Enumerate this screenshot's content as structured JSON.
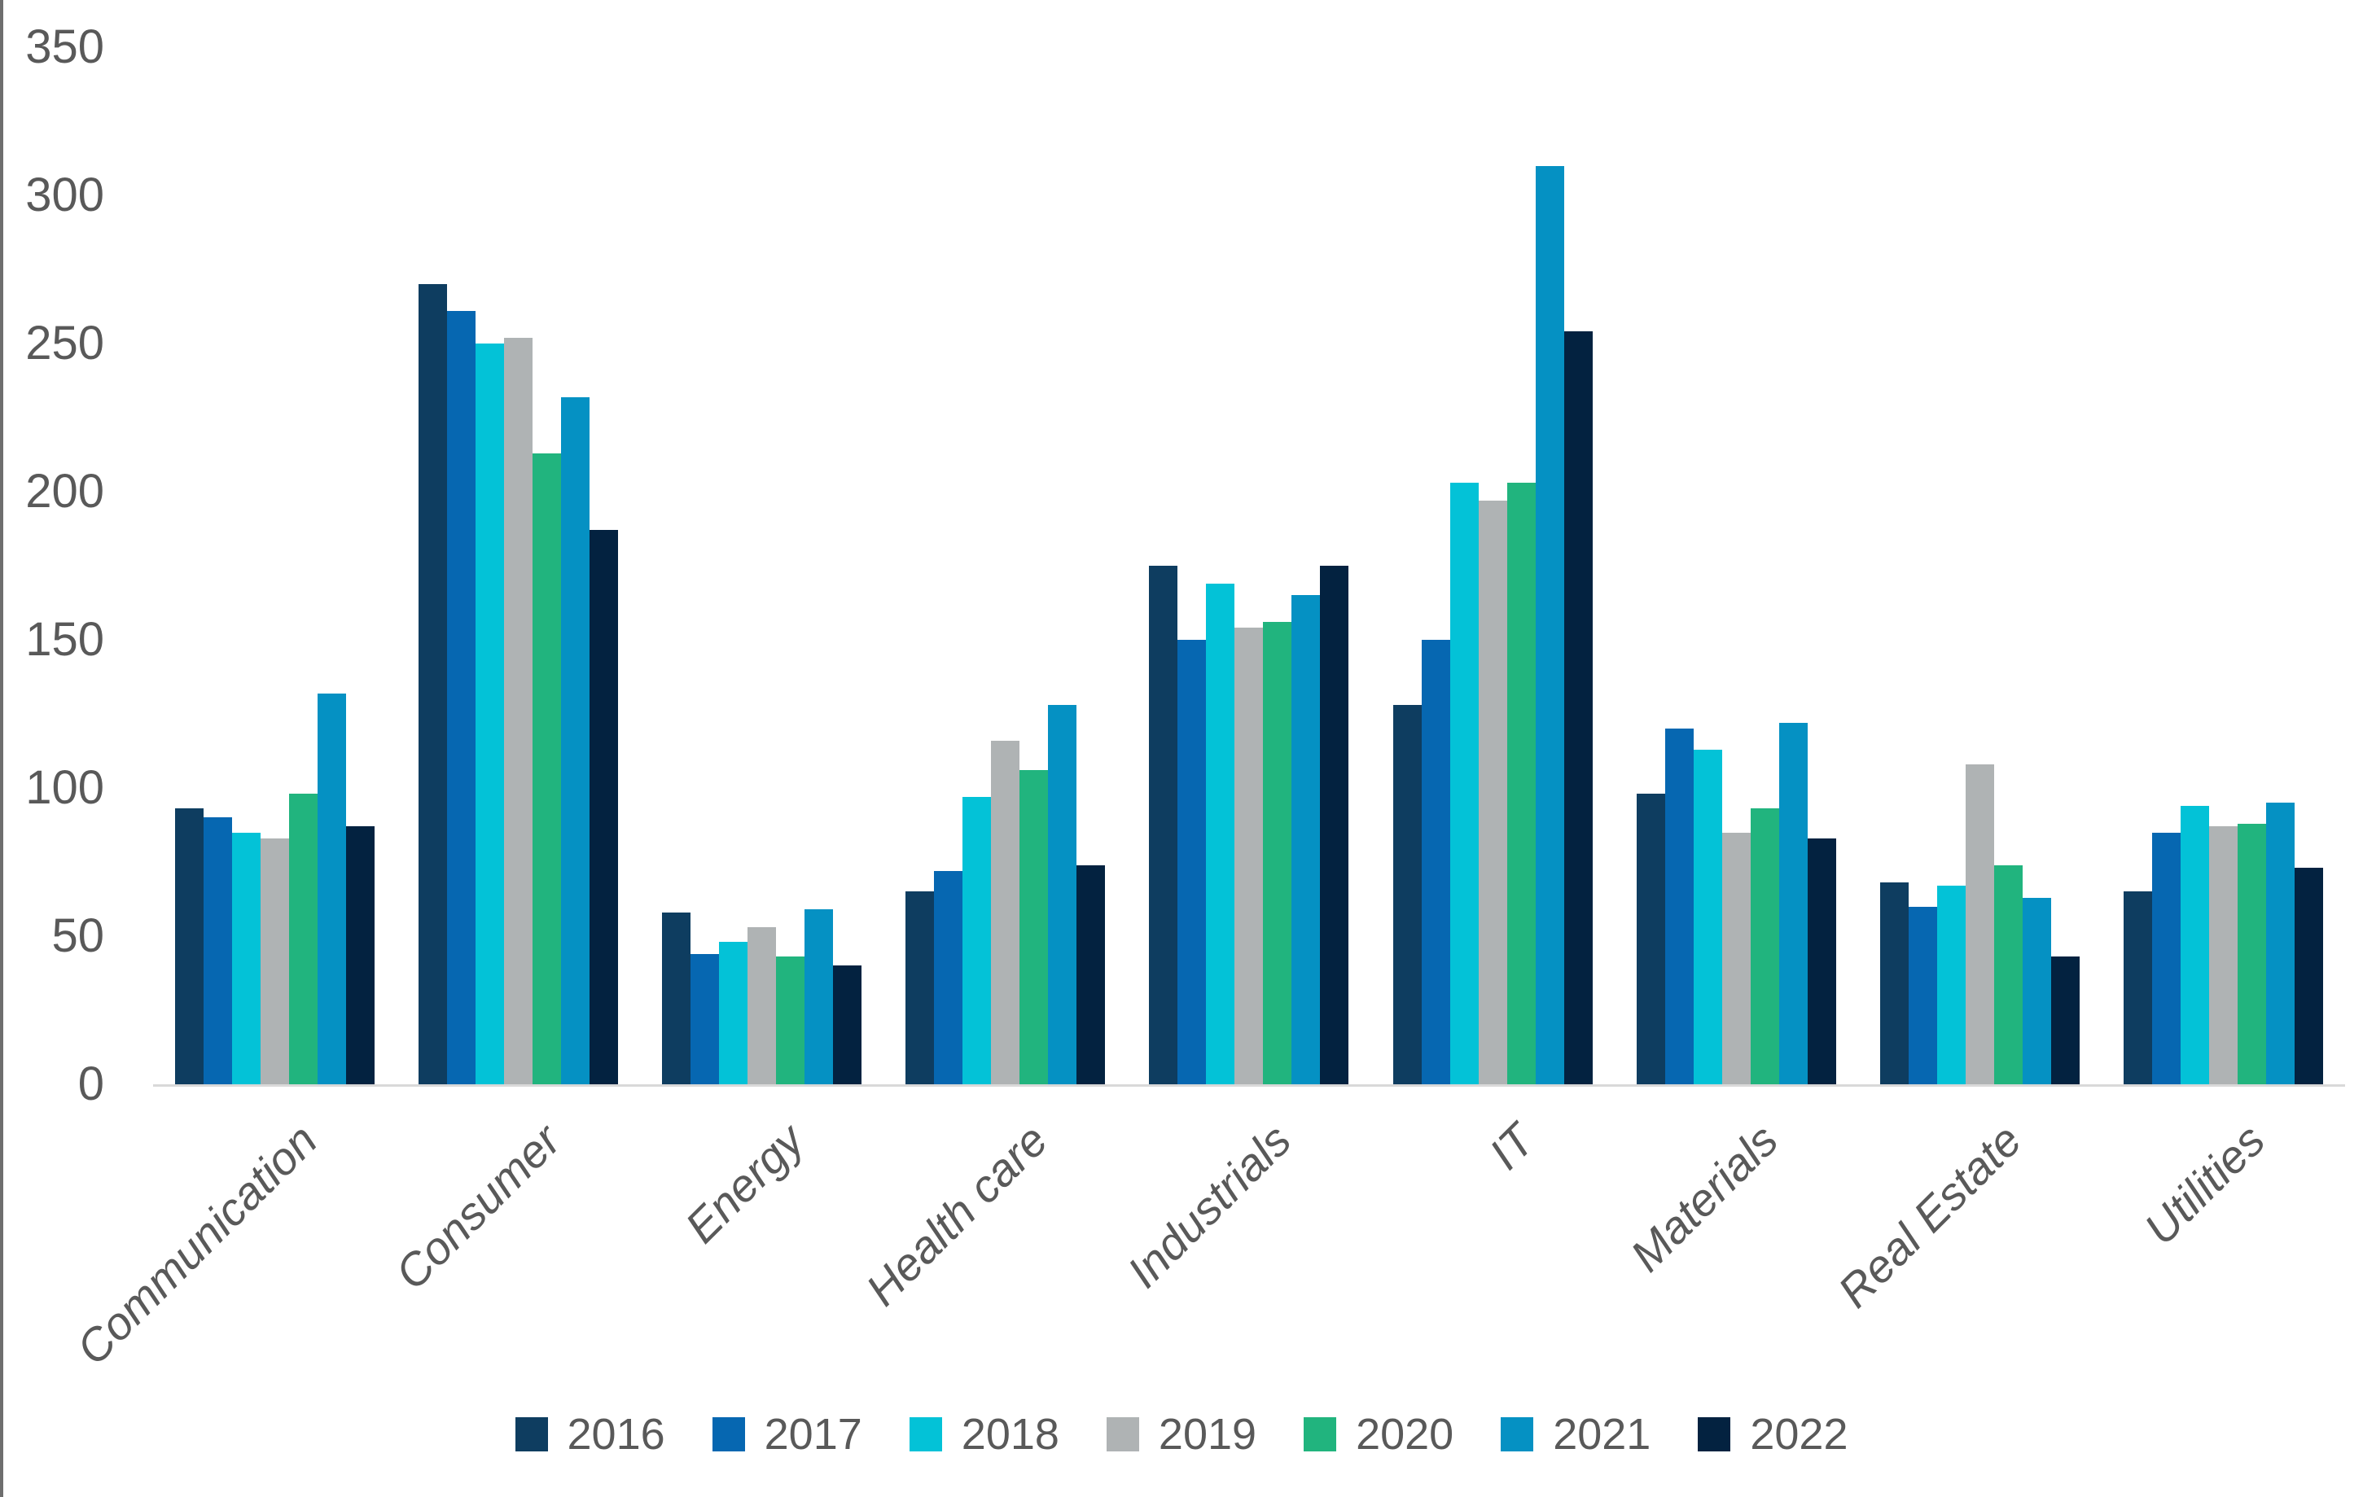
{
  "window": {
    "background": "#FFFFFF",
    "left_edge_color": "#6E6E6E"
  },
  "chart_data": {
    "type": "bar",
    "title": "",
    "xlabel": "",
    "ylabel": "",
    "categories": [
      "Communication",
      "Consumer",
      "Energy",
      "Health care",
      "Industrials",
      "IT",
      "Materials",
      "Real Estate",
      "Utilities"
    ],
    "series": [
      {
        "name": "2016",
        "color": "#0E3D60",
        "values": [
          93,
          270,
          58,
          65,
          175,
          128,
          98,
          68,
          65
        ]
      },
      {
        "name": "2017",
        "color": "#0667B1",
        "values": [
          90,
          261,
          44,
          72,
          150,
          150,
          120,
          60,
          85
        ]
      },
      {
        "name": "2018",
        "color": "#03C2D7",
        "values": [
          85,
          250,
          48,
          97,
          169,
          203,
          113,
          67,
          94
        ]
      },
      {
        "name": "2019",
        "color": "#AFB3B4",
        "values": [
          83,
          252,
          53,
          116,
          154,
          197,
          85,
          108,
          87
        ]
      },
      {
        "name": "2020",
        "color": "#21B47E",
        "values": [
          98,
          213,
          43,
          106,
          156,
          203,
          93,
          74,
          88
        ]
      },
      {
        "name": "2021",
        "color": "#0591C3",
        "values": [
          132,
          232,
          59,
          128,
          165,
          310,
          122,
          63,
          95
        ]
      },
      {
        "name": "2022",
        "color": "#032240",
        "values": [
          87,
          187,
          40,
          74,
          175,
          254,
          83,
          43,
          73
        ]
      }
    ],
    "ylim": [
      0,
      350
    ],
    "yticks": [
      0,
      50,
      100,
      150,
      200,
      250,
      300,
      350
    ],
    "grid": false,
    "legend_position": "bottom",
    "axis_text_color": "#595959",
    "axis_line_color": "#D9D9D9"
  }
}
